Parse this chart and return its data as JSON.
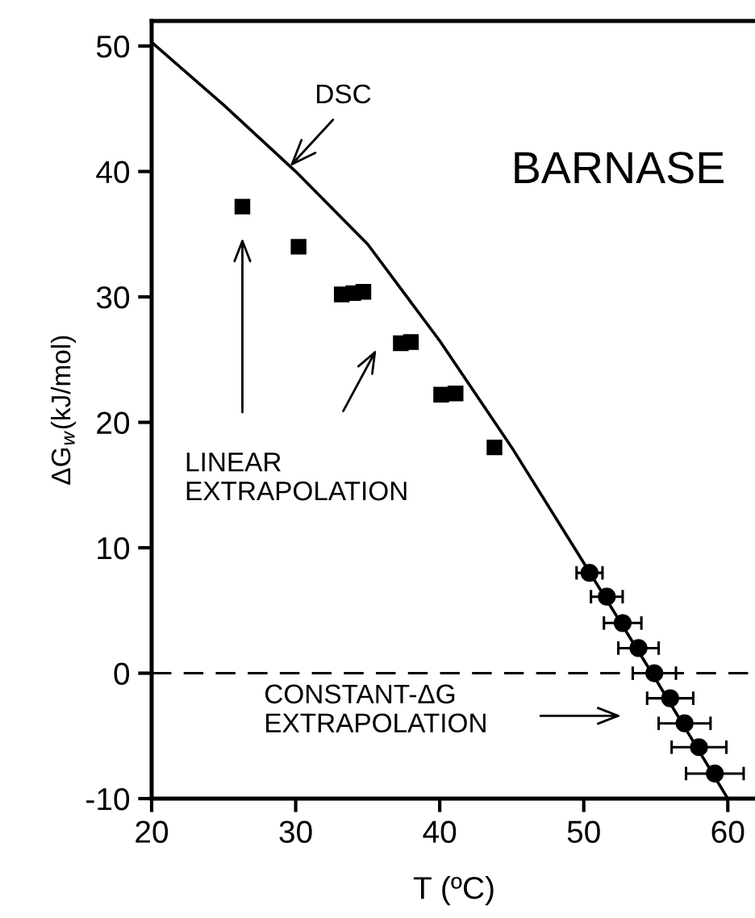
{
  "chart_data": {
    "type": "line",
    "xlabel": "T (ºC)",
    "ylabel": "ΔG$_{w}$(kJ/mol)",
    "xlim": [
      20,
      62
    ],
    "ylim": [
      -10,
      52
    ],
    "xticks": [
      20,
      30,
      40,
      50,
      60
    ],
    "yticks": [
      -10,
      0,
      10,
      20,
      30,
      40,
      50
    ],
    "grid": false,
    "series": [
      {
        "color": "#000000",
        "marker": "none",
        "line_style": "solid",
        "x": [
          20,
          25,
          30,
          35,
          40,
          45,
          50,
          55,
          60
        ],
        "values": [
          50.3,
          45.3,
          40.0,
          34.2,
          26.5,
          18.0,
          8.8,
          -0.5,
          -10
        ]
      },
      {
        "type": "scatter",
        "color": "#000000",
        "marker": "square",
        "x": [
          26.3,
          30.2,
          33.2,
          34.0,
          34.7,
          37.3,
          38.0,
          40.1,
          41.1,
          43.8
        ],
        "values": [
          37.2,
          34.0,
          30.2,
          30.3,
          30.4,
          26.3,
          26.4,
          22.2,
          22.3,
          18.0
        ]
      },
      {
        "type": "scatter",
        "color": "#000000",
        "marker": "circle",
        "x": [
          50.4,
          51.6,
          52.7,
          53.8,
          54.9,
          56.0,
          57.0,
          58.0,
          59.1
        ],
        "values": [
          8.0,
          6.1,
          4.0,
          2.0,
          0.0,
          -2.0,
          -4.0,
          -5.9,
          -8.0
        ],
        "xerrors": [
          0.9,
          1.1,
          1.3,
          1.4,
          1.5,
          1.6,
          1.8,
          1.9,
          2.0
        ]
      }
    ],
    "ref_lines": [
      {
        "axis": "y",
        "value": 0,
        "line_style": "dashed",
        "color": "#000000"
      }
    ],
    "annotations": [
      {
        "text": "DSC",
        "x": 29.6,
        "y": 40.4
      },
      "BARNASE",
      "LINEAR\nEXTRAPOLATION",
      "CONSTANT-ΔG\nEXTRAPOLATION"
    ]
  }
}
